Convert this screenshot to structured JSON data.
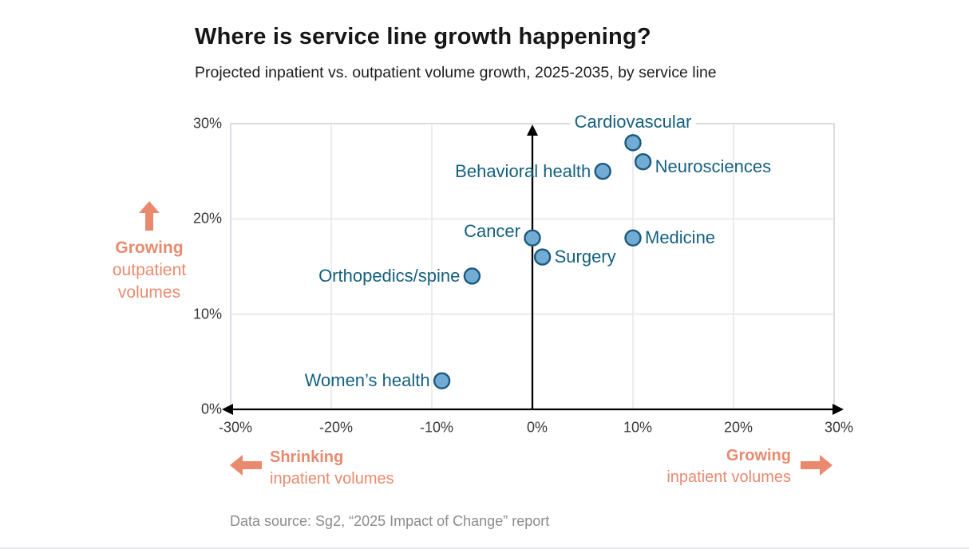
{
  "page": {
    "title": "Where is service line growth happening?",
    "subtitle": "Projected inpatient vs. outpatient volume growth, 2025-2035, by service line",
    "footer": "Data source: Sg2, “2025 Impact of Change” report"
  },
  "annotations": {
    "growing_outpatient": {
      "line1": "Growing",
      "line2": "outpatient",
      "line3": "volumes"
    },
    "shrinking_inpatient": {
      "line1": "Shrinking",
      "line2": "inpatient volumes"
    },
    "growing_inpatient": {
      "line1": "Growing",
      "line2": "inpatient volumes"
    }
  },
  "colors": {
    "accent_salmon": "#e98a6f",
    "label_teal": "#15607f",
    "dot_fill": "#72abd3",
    "dot_stroke": "#1b5a7c",
    "grid": "#e5e5eb",
    "plot_border": "#dcdce3",
    "axis": "#000000",
    "tick_text": "#383838",
    "footer_gray": "#8c8c8c"
  },
  "chart_data": {
    "type": "scatter",
    "title": "Where is service line growth happening?",
    "subtitle": "Projected inpatient vs. outpatient volume growth, 2025-2035, by service line",
    "x_axis_meaning": "inpatient volume growth",
    "y_axis_meaning": "outpatient volume growth",
    "xlim": [
      -30,
      30
    ],
    "ylim": [
      0,
      30
    ],
    "x_ticks": [
      -30,
      -20,
      -10,
      0,
      10,
      20,
      30
    ],
    "y_ticks": [
      0,
      10,
      20,
      30
    ],
    "x_tick_labels": [
      "-30%",
      "-20%",
      "-10%",
      "0%",
      "10%",
      "20%",
      "30%"
    ],
    "y_tick_labels": [
      "0%",
      "10%",
      "20%",
      "30%"
    ],
    "grid": true,
    "legend": "none",
    "points": [
      {
        "name": "Cardiovascular",
        "x": 10,
        "y": 28,
        "label_side": "above",
        "label_dy": 0
      },
      {
        "name": "Neurosciences",
        "x": 11,
        "y": 26,
        "label_side": "right",
        "label_dy": 6
      },
      {
        "name": "Behavioral health",
        "x": 7,
        "y": 25,
        "label_side": "left",
        "label_dy": 0
      },
      {
        "name": "Cancer",
        "x": 0,
        "y": 18,
        "label_side": "left",
        "label_dy": -8
      },
      {
        "name": "Medicine",
        "x": 10,
        "y": 18,
        "label_side": "right",
        "label_dy": 0
      },
      {
        "name": "Surgery",
        "x": 1,
        "y": 16,
        "label_side": "right",
        "label_dy": 0
      },
      {
        "name": "Orthopedics/spine",
        "x": -6,
        "y": 14,
        "label_side": "left",
        "label_dy": 0
      },
      {
        "name": "Women’s health",
        "x": -9,
        "y": 3,
        "label_side": "left",
        "label_dy": 0
      }
    ]
  }
}
